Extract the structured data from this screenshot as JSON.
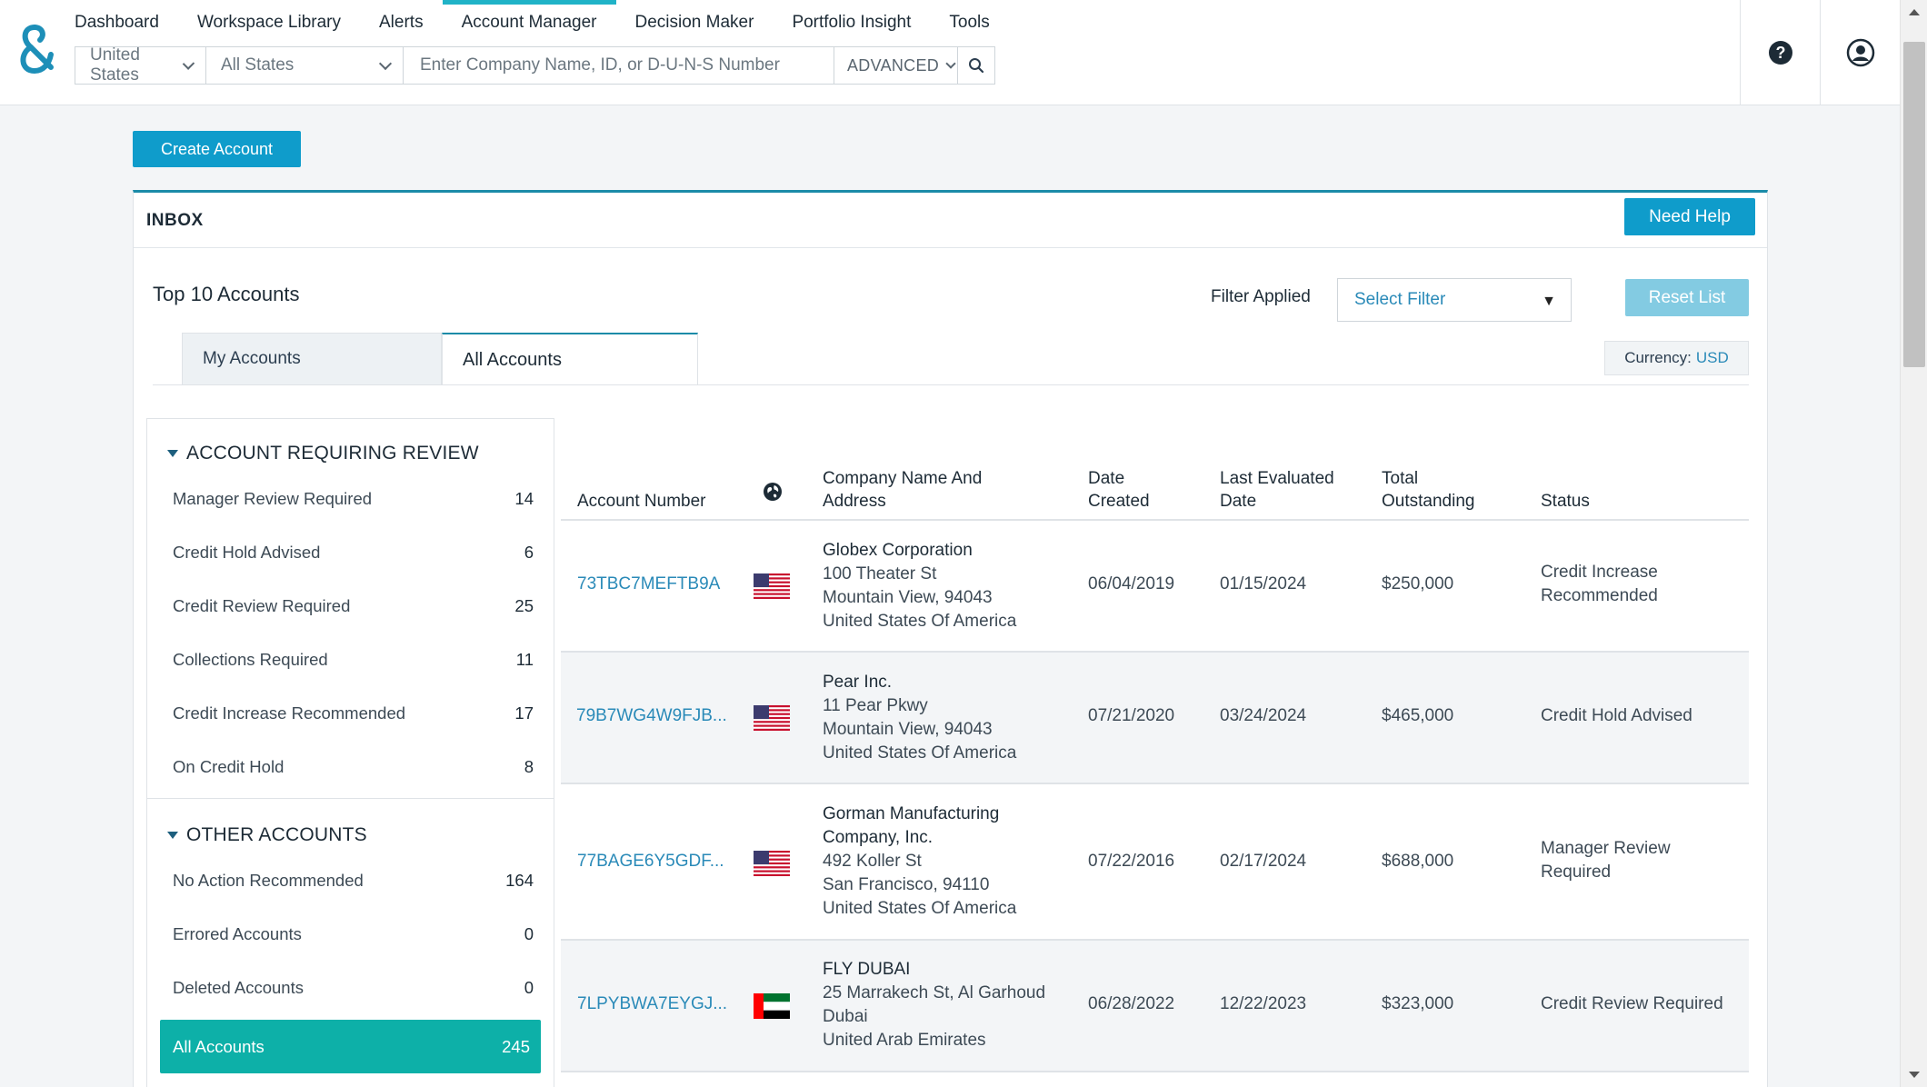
{
  "nav": {
    "items": [
      "Dashboard",
      "Workspace Library",
      "Alerts",
      "Account Manager",
      "Decision Maker",
      "Portfolio Insight",
      "Tools"
    ],
    "active": "Account Manager"
  },
  "search": {
    "country": "United States",
    "state": "All States",
    "placeholder": "Enter Company Name, ID, or D-U-N-S Number",
    "advanced": "ADVANCED"
  },
  "create_account": "Create Account",
  "inbox": {
    "title": "INBOX",
    "need_help": "Need Help",
    "top_accounts": "Top 10 Accounts",
    "filter_label": "Filter Applied",
    "filter_select": "Select Filter",
    "reset": "Reset List",
    "tabs": [
      "My Accounts",
      "All Accounts"
    ],
    "currency_label": "Currency:",
    "currency_value": "USD"
  },
  "sidebar": {
    "review_title": "ACCOUNT REQUIRING REVIEW",
    "review_items": [
      {
        "label": "Manager Review Required",
        "count": "14"
      },
      {
        "label": "Credit Hold Advised",
        "count": "6"
      },
      {
        "label": "Credit Review Required",
        "count": "25"
      },
      {
        "label": "Collections Required",
        "count": "11"
      },
      {
        "label": "Credit Increase Recommended",
        "count": "17"
      },
      {
        "label": "On Credit Hold",
        "count": "8"
      }
    ],
    "other_title": "OTHER ACCOUNTS",
    "other_items": [
      {
        "label": "No Action Recommended",
        "count": "164"
      },
      {
        "label": "Errored Accounts",
        "count": "0"
      },
      {
        "label": "Deleted Accounts",
        "count": "0"
      },
      {
        "label": "All Accounts",
        "count": "245"
      }
    ]
  },
  "table": {
    "headers": {
      "account_number": "Account Number",
      "company_l1": "Company Name And",
      "company_l2": "Address",
      "date_l1": "Date",
      "date_l2": "Created",
      "last_l1": "Last Evaluated",
      "last_l2": "Date",
      "total_l1": "Total",
      "total_l2": "Outstanding",
      "status": "Status"
    },
    "rows": [
      {
        "account": "73TBC7MEFTB9A",
        "flag": "us",
        "company": [
          "Globex Corporation"
        ],
        "address": [
          "100 Theater St",
          "Mountain View, 94043",
          "United States Of America"
        ],
        "created": "06/04/2019",
        "evaluated": "01/15/2024",
        "outstanding": "$250,000",
        "status": [
          "Credit Increase",
          "Recommended"
        ]
      },
      {
        "account": "79B7WG4W9FJB...",
        "flag": "us",
        "company": [
          "Pear Inc."
        ],
        "address": [
          "11 Pear Pkwy",
          "Mountain View, 94043",
          "United States Of America"
        ],
        "created": "07/21/2020",
        "evaluated": "03/24/2024",
        "outstanding": "$465,000",
        "status": [
          "Credit Hold Advised"
        ]
      },
      {
        "account": "77BAGE6Y5GDF...",
        "flag": "us",
        "company": [
          "Gorman Manufacturing",
          "Company, Inc."
        ],
        "address": [
          "492 Koller St",
          "San Francisco, 94110",
          "United States Of America"
        ],
        "created": "07/22/2016",
        "evaluated": "02/17/2024",
        "outstanding": "$688,000",
        "status": [
          "Manager Review",
          "Required"
        ]
      },
      {
        "account": "7LPYBWA7EYGJ...",
        "flag": "ae",
        "company": [
          "FLY DUBAI"
        ],
        "address": [
          "25 Marrakech St, Al Garhoud",
          "Dubai",
          "United Arab Emirates"
        ],
        "created": "06/28/2022",
        "evaluated": "12/22/2023",
        "outstanding": "$323,000",
        "status": [
          "Credit Review Required"
        ]
      }
    ]
  },
  "colors": {
    "brand": "#0f9ccb",
    "accent_teal": "#0db0a8",
    "link": "#2a8ab8",
    "nav_active": "#20b3c7"
  },
  "icons": [
    "logo-icon",
    "chevron-down-icon",
    "search-icon",
    "help-icon",
    "user-account-icon",
    "globe-icon",
    "us-flag-icon",
    "uae-flag-icon",
    "caret-down-icon"
  ]
}
